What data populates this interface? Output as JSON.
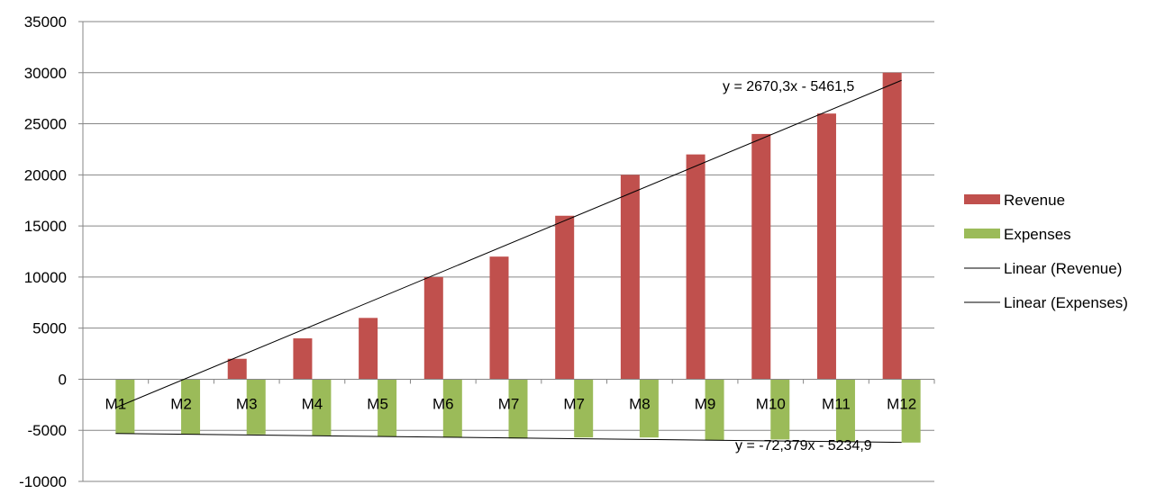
{
  "chart_data": {
    "type": "bar",
    "categories": [
      "M1",
      "M2",
      "M3",
      "M4",
      "M5",
      "M6",
      "M7",
      "M7",
      "M8",
      "M9",
      "M10",
      "M11",
      "M12"
    ],
    "series": [
      {
        "name": "Revenue",
        "color": "#c0504d",
        "values": [
          0,
          0,
          2000,
          4000,
          6000,
          10000,
          12000,
          16000,
          20000,
          22000,
          24000,
          26000,
          30000
        ]
      },
      {
        "name": "Expenses",
        "color": "#9bbb59",
        "values": [
          -5300,
          -5400,
          -5400,
          -5500,
          -5600,
          -5700,
          -5800,
          -5700,
          -5700,
          -6000,
          -5900,
          -6100,
          -6200
        ]
      }
    ],
    "trendlines": [
      {
        "name": "Linear (Revenue)",
        "slope": 2670.3,
        "intercept": -5461.5,
        "equation": "y = 2670,3x - 5461,5",
        "color": "#000000"
      },
      {
        "name": "Linear (Expenses)",
        "slope": -72.379,
        "intercept": -5234.9,
        "equation": "y = -72,379x - 5234,9",
        "color": "#000000"
      }
    ],
    "ylim": [
      -10000,
      35000
    ],
    "yticks": [
      "-10000",
      "-5000",
      "0",
      "5000",
      "10000",
      "15000",
      "20000",
      "25000",
      "30000",
      "35000"
    ],
    "grid": true,
    "legend_position": "right",
    "title": "",
    "xlabel": "",
    "ylabel": ""
  }
}
